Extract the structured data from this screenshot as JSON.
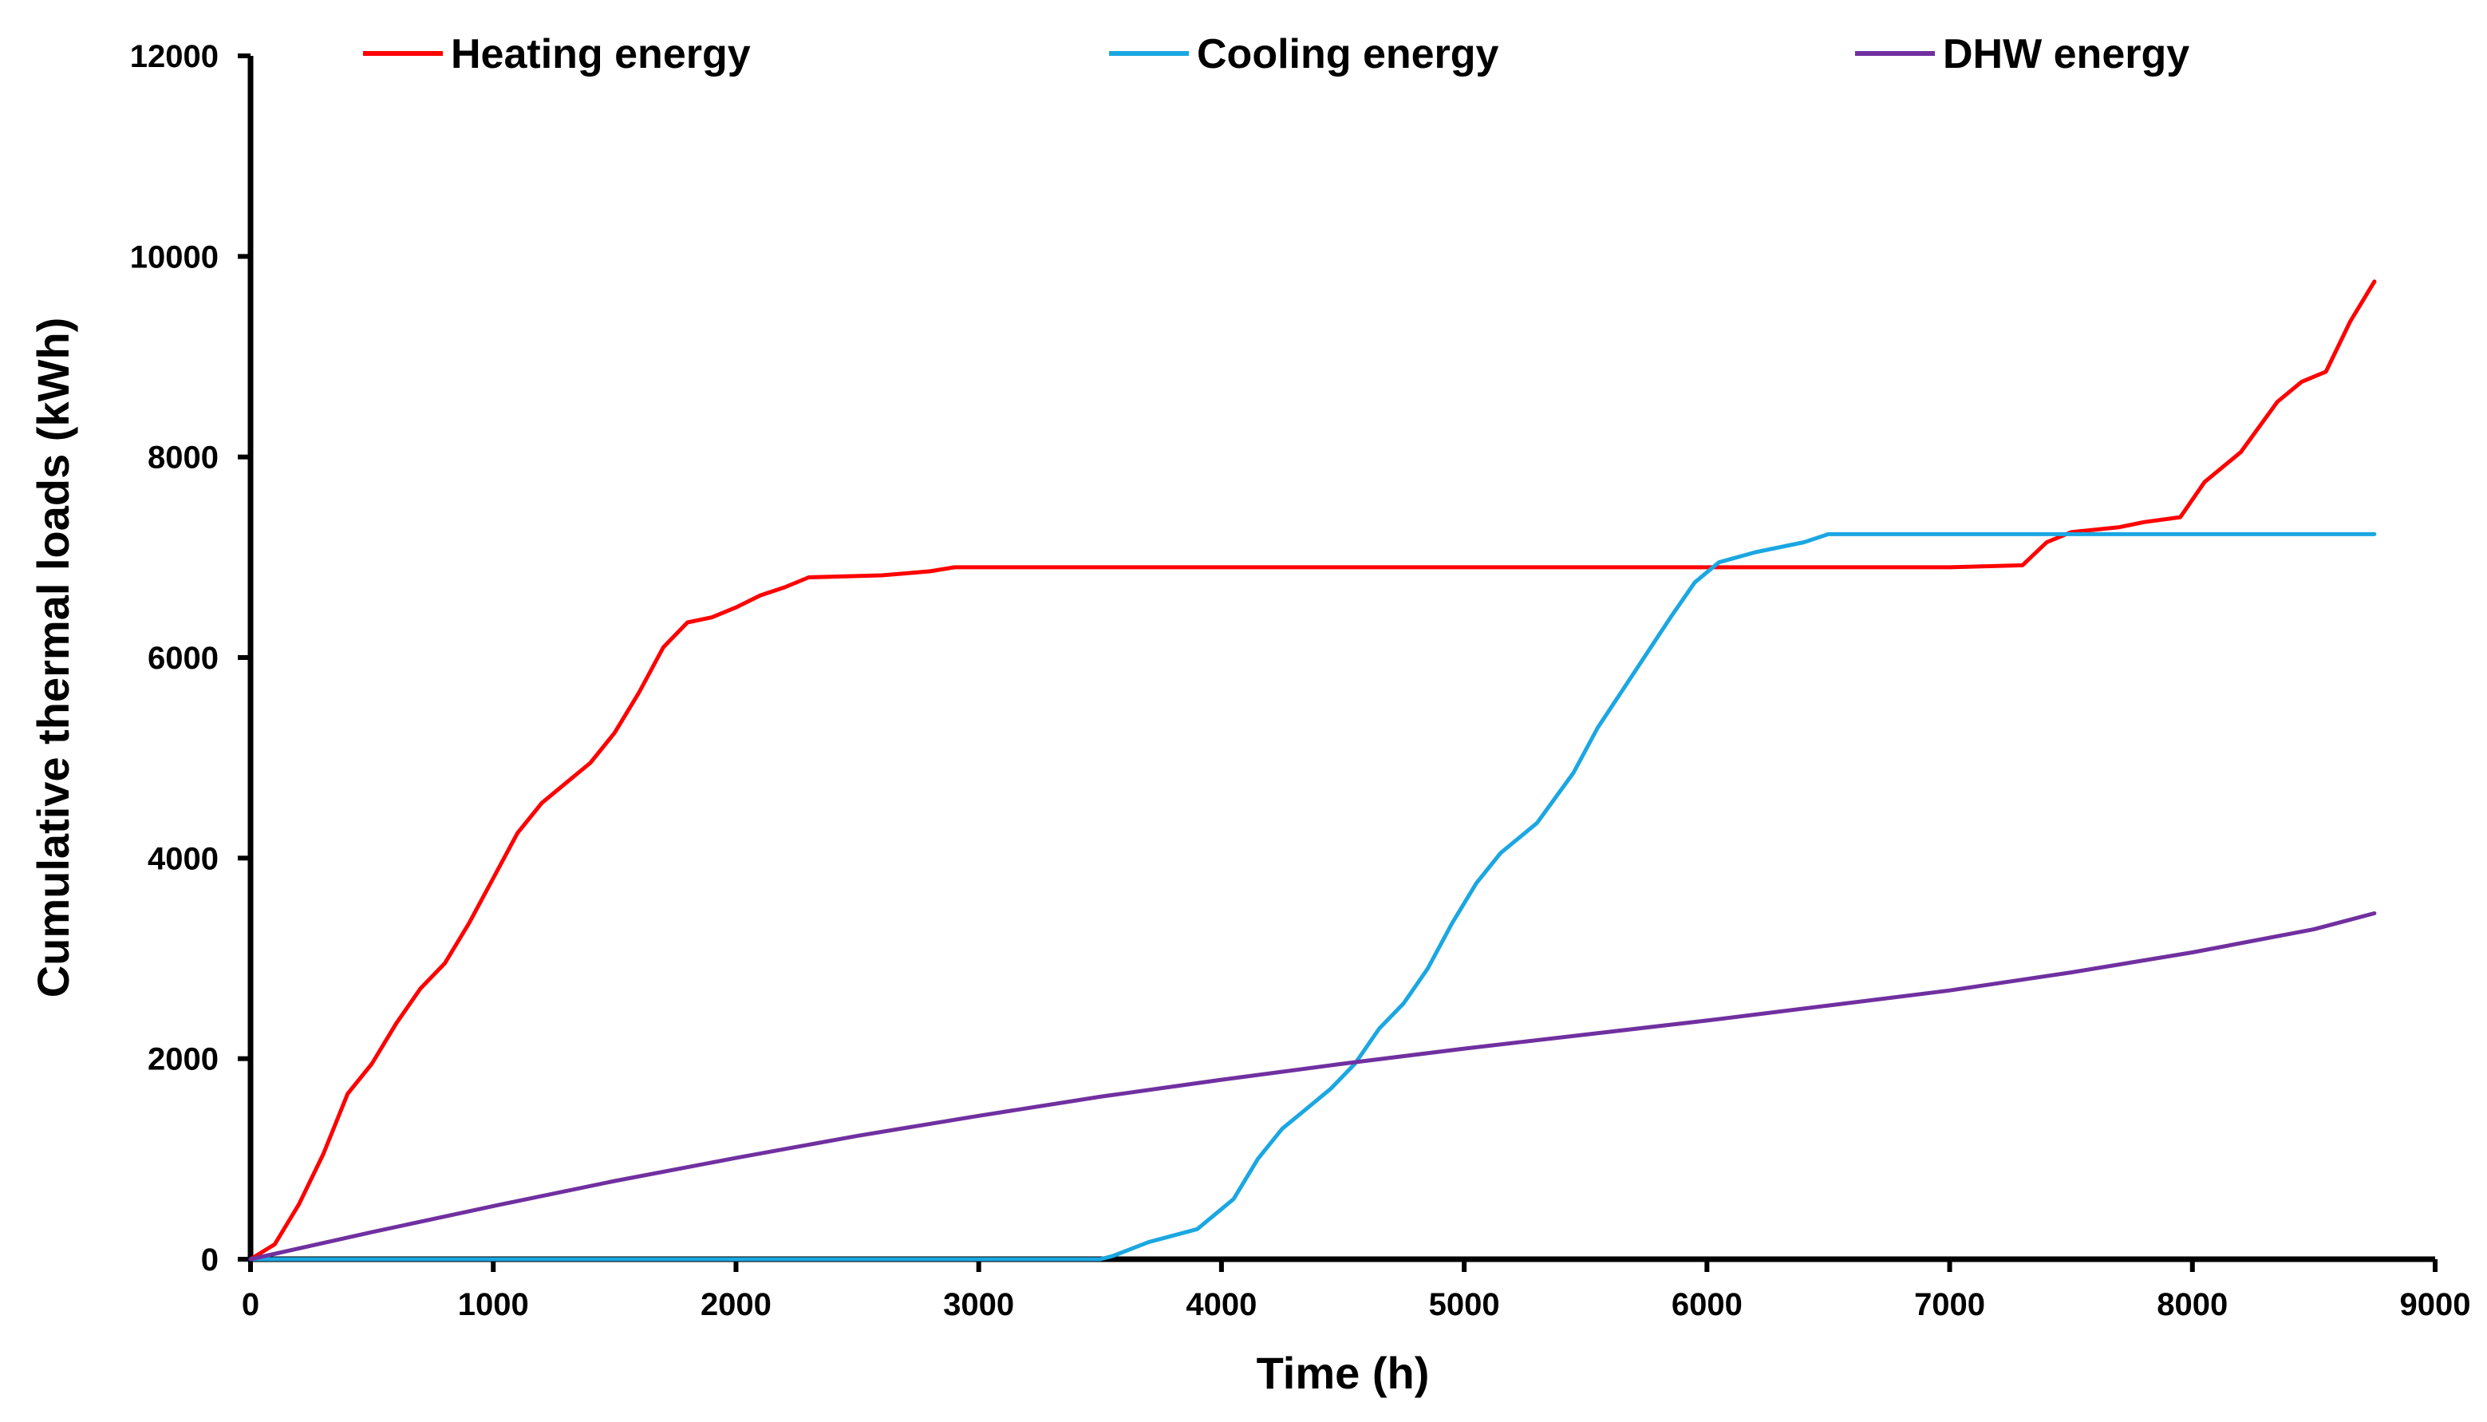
{
  "chart_data": {
    "type": "line",
    "title": "",
    "xlabel": "Time (h)",
    "ylabel": "Cumulative thermal loads (kWh)",
    "xlim": [
      0,
      9000
    ],
    "ylim": [
      0,
      12000
    ],
    "x_ticks": [
      0,
      1000,
      2000,
      3000,
      4000,
      5000,
      6000,
      7000,
      8000,
      9000
    ],
    "y_ticks": [
      0,
      2000,
      4000,
      6000,
      8000,
      10000,
      12000
    ],
    "x_tick_labels": [
      "0",
      "1000",
      "2000",
      "3000",
      "4000",
      "5000",
      "6000",
      "7000",
      "8000",
      "9000"
    ],
    "y_tick_labels": [
      "0",
      "2000",
      "4000",
      "6000",
      "8000",
      "10000",
      "12000"
    ],
    "grid": false,
    "legend_position": "top",
    "series": [
      {
        "name": "Heating energy",
        "color": "#ff0000",
        "x": [
          0,
          100,
          200,
          300,
          400,
          500,
          600,
          700,
          800,
          900,
          1000,
          1100,
          1200,
          1300,
          1400,
          1500,
          1600,
          1700,
          1800,
          1900,
          2000,
          2100,
          2200,
          2300,
          2600,
          2800,
          2900,
          7000,
          7300,
          7400,
          7500,
          7700,
          7800,
          7950,
          8050,
          8200,
          8350,
          8450,
          8550,
          8650,
          8750
        ],
        "y": [
          0,
          150,
          550,
          1050,
          1650,
          1950,
          2350,
          2700,
          2950,
          3350,
          3800,
          4250,
          4550,
          4750,
          4950,
          5250,
          5650,
          6100,
          6350,
          6400,
          6500,
          6620,
          6700,
          6800,
          6820,
          6860,
          6900,
          6900,
          6920,
          7150,
          7250,
          7300,
          7350,
          7400,
          7750,
          8050,
          8550,
          8750,
          8850,
          9350,
          9750
        ]
      },
      {
        "name": "Cooling energy",
        "color": "#1aa7e2",
        "x": [
          0,
          3500,
          3550,
          3700,
          3900,
          4050,
          4150,
          4250,
          4350,
          4450,
          4550,
          4650,
          4750,
          4850,
          4950,
          5050,
          5150,
          5300,
          5450,
          5550,
          5700,
          5850,
          5950,
          6050,
          6200,
          6400,
          6500,
          8750
        ],
        "y": [
          0,
          0,
          30,
          170,
          300,
          600,
          1000,
          1300,
          1500,
          1700,
          1950,
          2300,
          2550,
          2900,
          3350,
          3750,
          4050,
          4350,
          4850,
          5300,
          5850,
          6400,
          6750,
          6950,
          7050,
          7150,
          7230,
          7230
        ]
      },
      {
        "name": "DHW energy",
        "color": "#7030a0",
        "x": [
          0,
          500,
          1000,
          1500,
          2000,
          2500,
          3000,
          3500,
          4000,
          4500,
          5000,
          5500,
          6000,
          6500,
          7000,
          7500,
          8000,
          8500,
          8750
        ],
        "y": [
          0,
          270,
          530,
          780,
          1010,
          1230,
          1430,
          1620,
          1790,
          1950,
          2100,
          2240,
          2380,
          2530,
          2680,
          2860,
          3060,
          3290,
          3450
        ]
      }
    ]
  }
}
